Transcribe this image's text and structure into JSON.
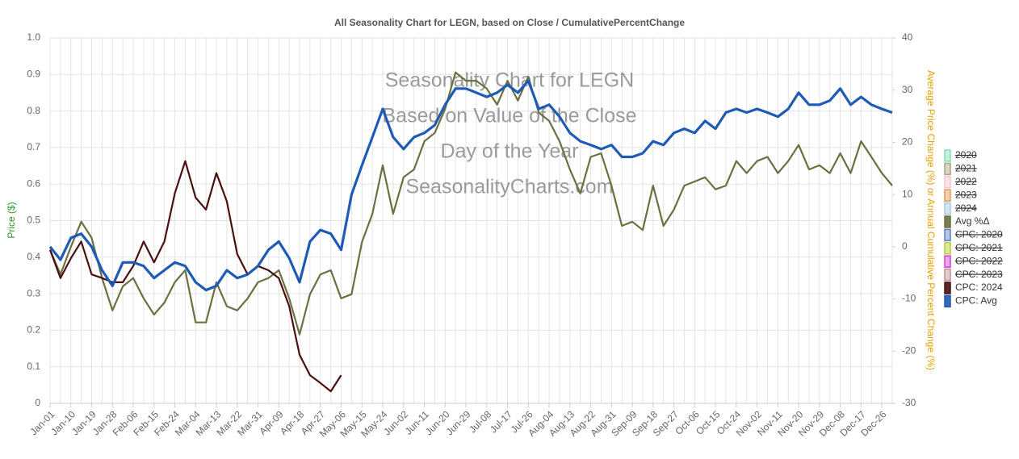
{
  "chart_data": {
    "type": "line",
    "title": "All Seasonality Chart for LEGN, based on Close / CumulativePercentChange",
    "y_label": "Price ($)",
    "y2_label": "Average Price Change (%) or Annual Cumulative Percent Change (%)",
    "watermark": [
      "Seasonality Chart for LEGN",
      "Based on Value of the Close",
      "Day of the Year",
      "SeasonalityCharts.com"
    ],
    "ylim": [
      0,
      1
    ],
    "yticks": [
      0,
      0.1,
      0.2,
      0.3,
      0.4,
      0.5,
      0.6,
      0.7,
      0.8,
      0.9,
      {
        "value": 1,
        "label": "1.0"
      }
    ],
    "y2lim": [
      -30,
      40
    ],
    "y2ticks": [
      -30,
      -20,
      -10,
      0,
      10,
      20,
      30,
      40
    ],
    "grid": true,
    "legend": "right",
    "categories": [
      "Jan-01",
      null,
      "Jan-10",
      null,
      "Jan-19",
      null,
      "Jan-28",
      null,
      "Feb-06",
      null,
      "Feb-15",
      null,
      "Feb-24",
      null,
      "Mar-04",
      null,
      "Mar-13",
      null,
      "Mar-22",
      null,
      "Mar-31",
      null,
      "Apr-09",
      null,
      "Apr-18",
      null,
      "Apr-27",
      null,
      "May-06",
      null,
      "May-15",
      null,
      "May-24",
      null,
      "Jun-02",
      null,
      "Jun-11",
      null,
      "Jun-20",
      null,
      "Jun-29",
      null,
      "Jul-08",
      null,
      "Jul-17",
      null,
      "Jul-26",
      null,
      "Aug-04",
      null,
      "Aug-13",
      null,
      "Aug-22",
      null,
      "Aug-31",
      null,
      "Sep-09",
      null,
      "Sep-18",
      null,
      "Sep-27",
      null,
      "Oct-06",
      null,
      "Oct-15",
      null,
      "Oct-24",
      null,
      "Nov-02",
      null,
      "Nov-11",
      null,
      "Nov-20",
      null,
      "Nov-29",
      null,
      "Dec-08",
      null,
      "Dec-17",
      null,
      "Dec-26",
      null
    ],
    "series": [
      {
        "name": "2020",
        "color": "#7fe0b0",
        "visible": false
      },
      {
        "name": "2021",
        "color": "#a9a77a",
        "visible": false
      },
      {
        "name": "2022",
        "color": "#f2c4d4",
        "visible": false
      },
      {
        "name": "2023",
        "color": "#e09a55",
        "visible": false
      },
      {
        "name": "2024",
        "color": "#a8c8e0",
        "visible": false
      },
      {
        "name": "Avg %Δ",
        "color": "#6b7040",
        "axis": "y2",
        "width": 2.2,
        "values": [
          -0.6,
          -5.3,
          0,
          4.8,
          1.7,
          -6,
          -12.2,
          -7.6,
          -6,
          -9.9,
          -13,
          -10.7,
          -6.8,
          -4.5,
          -14.5,
          -14.5,
          -6.8,
          -11.4,
          -12.2,
          -9.9,
          -6.8,
          -6,
          -4.5,
          -9.9,
          -16.8,
          -9.1,
          -5.3,
          -4.5,
          -9.9,
          -9.1,
          0.9,
          6.3,
          15.6,
          6.3,
          13.3,
          14.8,
          20.2,
          21.8,
          26.4,
          33.4,
          31.8,
          31.8,
          30.3,
          27.2,
          31.8,
          28,
          32.6,
          25.7,
          24.1,
          20.2,
          14.8,
          10.2,
          17.2,
          17.9,
          11.7,
          4,
          4.8,
          3.2,
          11.7,
          4,
          7.1,
          11.7,
          12.5,
          13.3,
          11,
          11.7,
          16.4,
          14.1,
          16.4,
          17.2,
          14.1,
          16.4,
          19.5,
          14.8,
          15.6,
          14.1,
          17.9,
          14.1,
          20.2,
          17.2,
          14.1,
          11.7
        ]
      },
      {
        "name": "CPC: 2020",
        "color": "#5b7fc0",
        "visible": false
      },
      {
        "name": "CPC: 2021",
        "color": "#b5cc30",
        "visible": false
      },
      {
        "name": "CPC: 2022",
        "color": "#d040d0",
        "visible": false
      },
      {
        "name": "CPC: 2023",
        "color": "#c09090",
        "visible": false
      },
      {
        "name": "CPC: 2024",
        "color": "#4a1010",
        "axis": "y2",
        "width": 2.2,
        "values": [
          -0.6,
          -6,
          -2.2,
          1,
          -5.3,
          -6,
          -6.8,
          -6.8,
          -3.7,
          1,
          -3,
          1,
          10.2,
          16.4,
          9.4,
          7.1,
          14.1,
          8.7,
          -1.4,
          -5.3,
          -3.7,
          -4.5,
          -6,
          -11.4,
          -20.7,
          -24.6,
          -26.1,
          -27.7,
          -24.6,
          null,
          null,
          null,
          null,
          null,
          null,
          null,
          null,
          null,
          null,
          null,
          null,
          null,
          null,
          null,
          null,
          null,
          null,
          null,
          null,
          null,
          null,
          null,
          null,
          null,
          null,
          null,
          null,
          null,
          null,
          null,
          null,
          null,
          null,
          null,
          null,
          null,
          null,
          null,
          null,
          null,
          null,
          null,
          null,
          null,
          null,
          null,
          null,
          null,
          null,
          null,
          null,
          null
        ]
      },
      {
        "name": "CPC: Avg",
        "color": "#1f5bb5",
        "axis": "y2",
        "width": 3.2,
        "values": [
          0,
          -2.5,
          1.7,
          2.5,
          0,
          -4.5,
          -7.5,
          -3,
          -3,
          -3.7,
          -6,
          -4.5,
          -3,
          -3.7,
          -6.8,
          -8.3,
          -7.5,
          -4.5,
          -6,
          -5.3,
          -3.7,
          -0.6,
          1,
          -2.2,
          -6.8,
          1,
          3.2,
          2.5,
          -0.6,
          10,
          15.6,
          21,
          26.4,
          21,
          18.7,
          21,
          21.8,
          23.3,
          27.2,
          30.3,
          30.3,
          29.5,
          28.7,
          29.5,
          31,
          29.5,
          31.8,
          26.4,
          27.2,
          24.9,
          21.8,
          20.2,
          19.5,
          18.7,
          19.5,
          17.2,
          17.2,
          17.9,
          20.2,
          19.5,
          21.8,
          22.6,
          21.8,
          24.1,
          22.6,
          25.7,
          26.4,
          25.7,
          26.4,
          25.7,
          24.9,
          26.4,
          29.5,
          27.2,
          27.2,
          28,
          30.3,
          27.2,
          28.7,
          27.2,
          26.4,
          25.7
        ]
      }
    ]
  }
}
